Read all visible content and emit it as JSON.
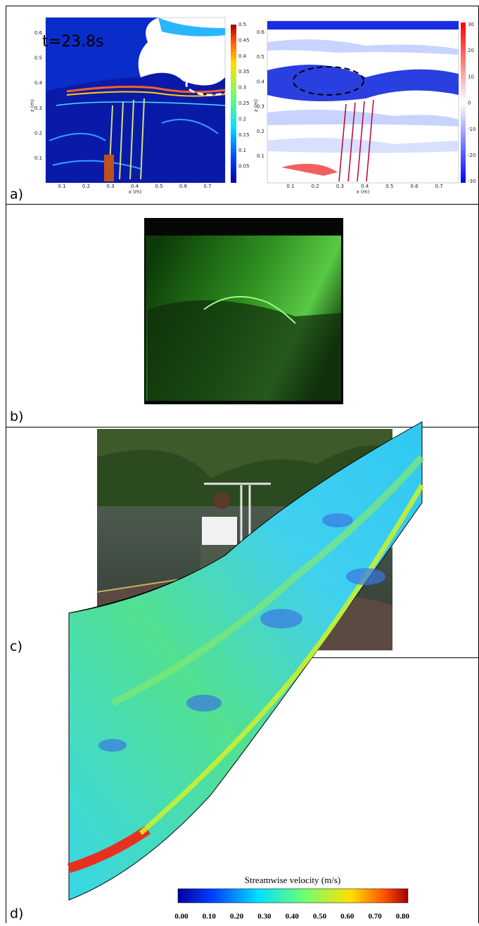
{
  "panels": [
    {
      "label": "a)",
      "annotation": "t=23.8s",
      "left_plot": {
        "x_label": "x (m)",
        "y_label": "z (m)",
        "x_ticks": [
          "0.1",
          "0.2",
          "0.3",
          "0.4",
          "0.5",
          "0.6",
          "0.7"
        ],
        "y_ticks": [
          "0.1",
          "0.2",
          "0.3",
          "0.4",
          "0.5",
          "0.6"
        ],
        "colorbar_ticks": [
          "0.5",
          "0.45",
          "0.4",
          "0.35",
          "0.3",
          "0.25",
          "0.2",
          "0.15",
          "0.1",
          "0.05"
        ]
      },
      "right_plot": {
        "x_label": "x (m)",
        "y_label": "z (m)",
        "x_ticks": [
          "0.1",
          "0.2",
          "0.3",
          "0.4",
          "0.5",
          "0.6",
          "0.7"
        ],
        "y_ticks": [
          "0.1",
          "0.2",
          "0.3",
          "0.4",
          "0.5",
          "0.6"
        ],
        "colorbar_ticks": [
          "30",
          "20",
          "10",
          "0",
          "-10",
          "-20",
          "-30"
        ]
      }
    },
    {
      "label": "b)"
    },
    {
      "label": "c)"
    },
    {
      "label": "d)",
      "colorbar_title": "Streamwise velocity (m/s)",
      "colorbar_ticks": [
        "0.00",
        "0.10",
        "0.20",
        "0.30",
        "0.40",
        "0.50",
        "0.60",
        "0.70",
        "0.80"
      ]
    }
  ]
}
